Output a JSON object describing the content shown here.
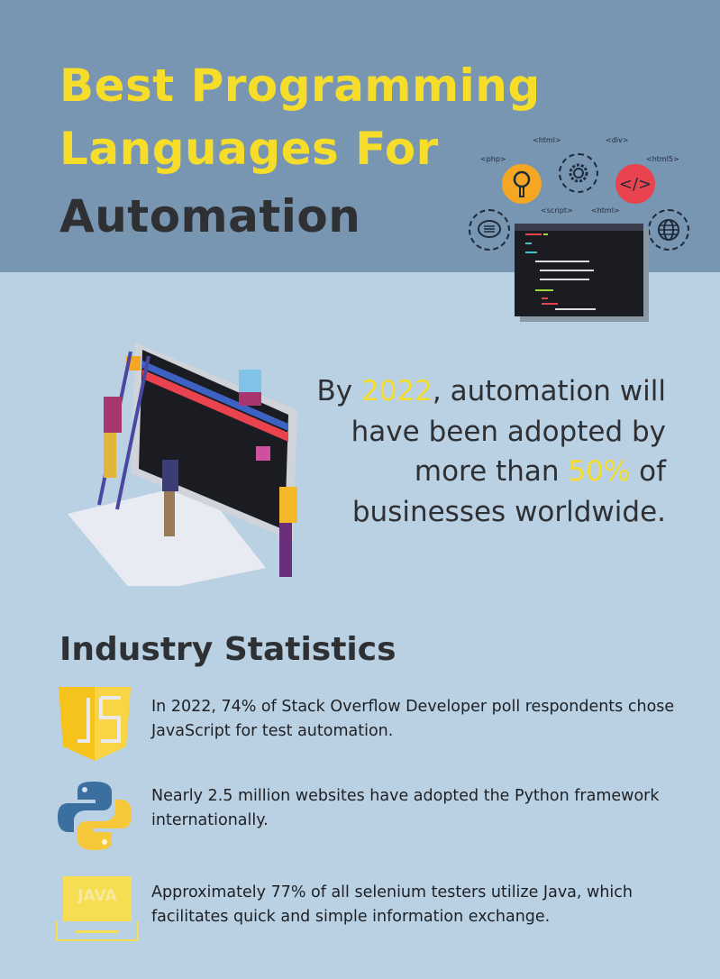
{
  "header": {
    "title_line1": "Best Programming",
    "title_line2": "Languages For",
    "title_line3": "Automation",
    "code_tags": [
      "<php>",
      "<html>",
      "<div>",
      "<html5>",
      "<script>",
      "<html>"
    ]
  },
  "claim": {
    "p1": "By ",
    "year": "2022",
    "p2": ", automation will have been adopted by more than ",
    "percent": "50%",
    "p3": " of businesses worldwide."
  },
  "industry": {
    "heading": "Industry Statistics",
    "stats": [
      {
        "icon": "javascript-icon",
        "text": "In 2022, 74% of Stack Overflow Developer poll respondents chose JavaScript for test automation."
      },
      {
        "icon": "python-icon",
        "text": "Nearly 2.5 million websites have adopted the Python framework internationally."
      },
      {
        "icon": "java-laptop-icon",
        "label": "JAVA",
        "text": "Approximately 77% of all selenium testers utilize Java, which facilitates quick and simple information exchange."
      }
    ]
  },
  "colors": {
    "header_bg": "#7895b2",
    "body_bg": "#b9d1e3",
    "accent": "#f6dd2a",
    "text": "#2e3033"
  }
}
